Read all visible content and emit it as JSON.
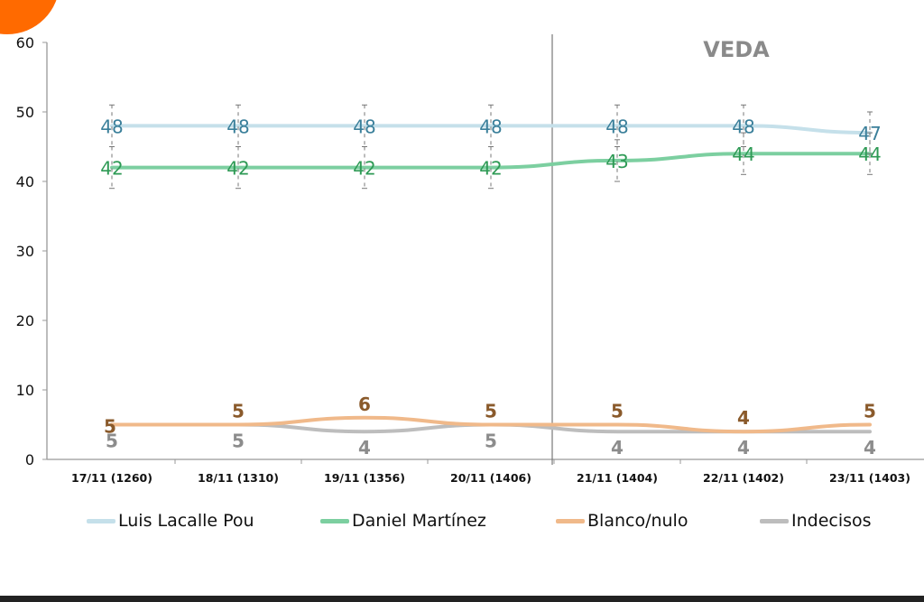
{
  "chart_data": {
    "type": "line",
    "title": "",
    "xlabel": "",
    "ylabel": "",
    "ylim": [
      0,
      60
    ],
    "yticks": [
      0,
      10,
      20,
      30,
      40,
      50,
      60
    ],
    "categories": [
      "17/11 (1260)",
      "18/11 (1310)",
      "19/11 (1356)",
      "20/11 (1406)",
      "21/11 (1404)",
      "22/11 (1402)",
      "23/11 (1403)"
    ],
    "annotation": {
      "text": "VEDA",
      "after_category": "20/11 (1406)"
    },
    "grid": false,
    "legend_placement": "bottom",
    "series": [
      {
        "name": "Luis Lacalle Pou",
        "color": "#c5e0ea",
        "label_color": "#3a7f9a",
        "values": [
          48,
          48,
          48,
          48,
          48,
          48,
          47
        ],
        "error_low": [
          45,
          45,
          45,
          45,
          45,
          45,
          44
        ],
        "error_high": [
          51,
          51,
          51,
          51,
          51,
          51,
          50
        ]
      },
      {
        "name": "Daniel Martínez",
        "color": "#7ccfa0",
        "label_color": "#2e9a55",
        "values": [
          42,
          42,
          42,
          42,
          43,
          44,
          44
        ],
        "error_low": [
          39,
          39,
          39,
          39,
          40,
          41,
          41
        ],
        "error_high": [
          45,
          45,
          45,
          45,
          46,
          47,
          47
        ]
      },
      {
        "name": "Blanco/nulo",
        "color": "#f0b98a",
        "label_color": "#8a5a2b",
        "values": [
          5,
          5,
          6,
          5,
          5,
          4,
          5
        ]
      },
      {
        "name": "Indecisos",
        "color": "#bdbdbd",
        "label_color": "#8c8c8c",
        "values": [
          5,
          5,
          4,
          5,
          4,
          4,
          4
        ]
      }
    ]
  },
  "decor": {
    "corner_color": "#ff6a00"
  }
}
